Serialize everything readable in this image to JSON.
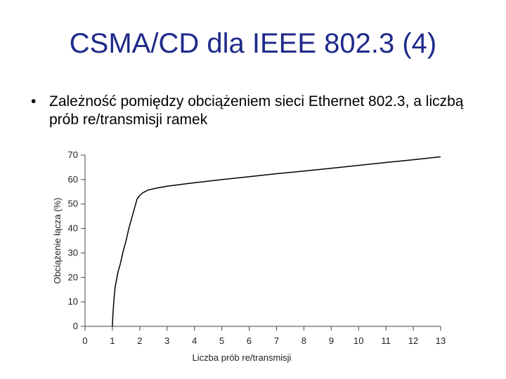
{
  "slide": {
    "title": "CSMA/CD dla IEEE 802.3 (4)",
    "bullet_symbol": "•",
    "bullet_text": "Zależność pomiędzy obciążeniem sieci Ethernet 802.3, a liczbą prób re/transmisji ramek"
  },
  "chart_data": {
    "type": "line",
    "title": "",
    "xlabel": "Liczba prób re/transmisji",
    "ylabel": "Obciążenie łącza (%)",
    "xlim": [
      0,
      13
    ],
    "ylim": [
      0,
      70
    ],
    "xticks": [
      "0",
      "1",
      "2",
      "3",
      "4",
      "5",
      "6",
      "7",
      "8",
      "9",
      "10",
      "11",
      "12",
      "13"
    ],
    "yticks": [
      "0",
      "10",
      "20",
      "30",
      "40",
      "50",
      "60",
      "70"
    ],
    "grid": false,
    "series": [
      {
        "x": [
          1.0,
          1.02,
          1.05,
          1.1,
          1.2,
          1.3,
          1.4,
          1.5,
          1.6,
          1.7,
          1.8,
          1.9,
          2.0,
          2.1,
          2.3,
          2.6,
          3.0,
          3.5,
          4.0,
          5.0,
          6.0,
          7.0,
          8.0,
          9.0,
          10.0,
          11.0,
          12.0,
          13.0
        ],
        "y": [
          0,
          5,
          10,
          16,
          22,
          26,
          31,
          35,
          40,
          44,
          48,
          52,
          53.5,
          54.5,
          55.7,
          56.5,
          57.3,
          58.0,
          58.7,
          60.0,
          61.2,
          62.4,
          63.5,
          64.6,
          65.8,
          67.0,
          68.1,
          69.3
        ]
      }
    ],
    "line_color": "#000000"
  }
}
